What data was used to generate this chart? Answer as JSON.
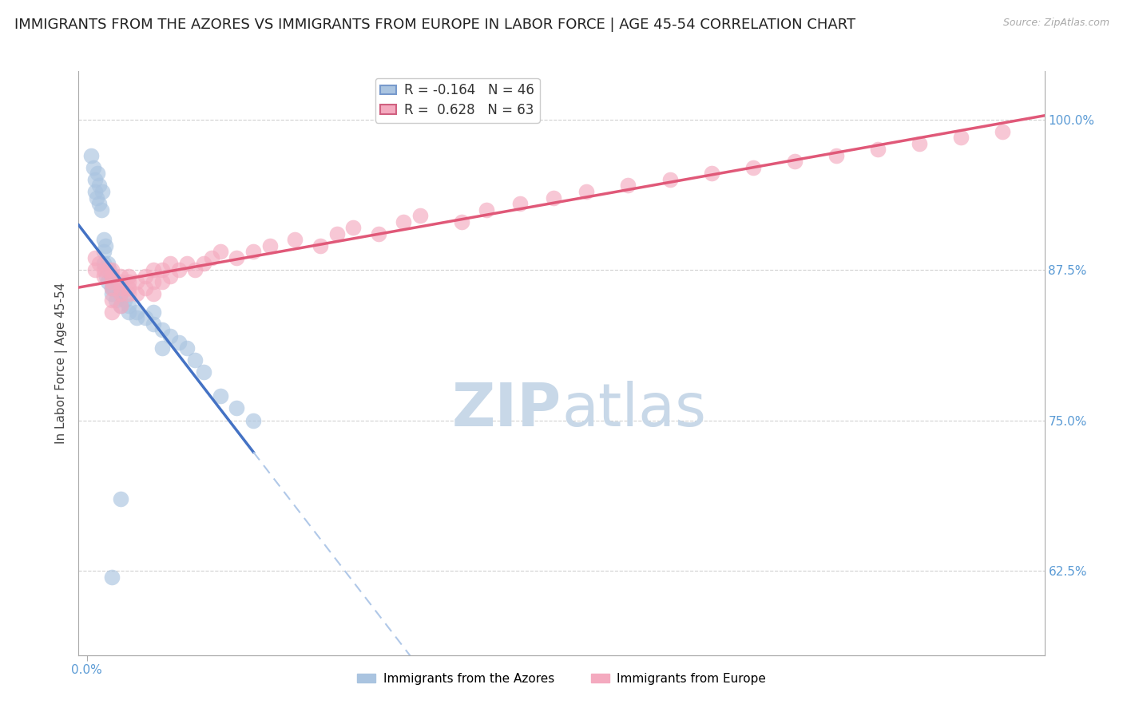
{
  "title": "IMMIGRANTS FROM THE AZORES VS IMMIGRANTS FROM EUROPE IN LABOR FORCE | AGE 45-54 CORRELATION CHART",
  "source": "Source: ZipAtlas.com",
  "ylabel": "In Labor Force | Age 45-54",
  "r_azores": -0.164,
  "n_azores": 46,
  "r_europe": 0.628,
  "n_europe": 63,
  "legend_azores": "Immigrants from the Azores",
  "legend_europe": "Immigrants from Europe",
  "color_azores": "#aac4e0",
  "color_europe": "#f4aabf",
  "line_color_azores": "#4472c4",
  "line_color_europe": "#e05878",
  "line_color_azores_dash": "#b0c8e8",
  "axis_color": "#5b9bd5",
  "ylim": [
    0.555,
    1.04
  ],
  "xlim": [
    -0.001,
    0.115
  ],
  "background_color": "#ffffff",
  "grid_color": "#d0d0d0",
  "title_fontsize": 13,
  "label_fontsize": 11,
  "tick_fontsize": 11,
  "watermark_zip": "ZIP",
  "watermark_atlas": "atlas",
  "watermark_color": "#c8d8e8",
  "azores_x": [
    0.0005,
    0.0008,
    0.001,
    0.001,
    0.0012,
    0.0013,
    0.0015,
    0.0015,
    0.0017,
    0.0018,
    0.002,
    0.002,
    0.002,
    0.0022,
    0.0023,
    0.0025,
    0.0025,
    0.0027,
    0.003,
    0.003,
    0.003,
    0.0032,
    0.0035,
    0.004,
    0.004,
    0.0042,
    0.0045,
    0.005,
    0.005,
    0.006,
    0.006,
    0.007,
    0.008,
    0.008,
    0.009,
    0.009,
    0.01,
    0.011,
    0.012,
    0.013,
    0.014,
    0.016,
    0.018,
    0.02,
    0.004,
    0.003
  ],
  "azores_y": [
    0.97,
    0.96,
    0.95,
    0.94,
    0.935,
    0.955,
    0.945,
    0.93,
    0.925,
    0.94,
    0.9,
    0.89,
    0.88,
    0.895,
    0.87,
    0.865,
    0.88,
    0.875,
    0.87,
    0.86,
    0.855,
    0.86,
    0.85,
    0.855,
    0.845,
    0.86,
    0.85,
    0.845,
    0.84,
    0.84,
    0.835,
    0.835,
    0.84,
    0.83,
    0.825,
    0.81,
    0.82,
    0.815,
    0.81,
    0.8,
    0.79,
    0.77,
    0.76,
    0.75,
    0.685,
    0.62
  ],
  "europe_x": [
    0.001,
    0.001,
    0.0015,
    0.002,
    0.002,
    0.0025,
    0.003,
    0.003,
    0.003,
    0.003,
    0.004,
    0.004,
    0.004,
    0.004,
    0.005,
    0.005,
    0.005,
    0.006,
    0.006,
    0.007,
    0.007,
    0.008,
    0.008,
    0.008,
    0.009,
    0.009,
    0.01,
    0.01,
    0.011,
    0.012,
    0.013,
    0.014,
    0.015,
    0.016,
    0.018,
    0.02,
    0.022,
    0.025,
    0.028,
    0.03,
    0.032,
    0.035,
    0.038,
    0.04,
    0.045,
    0.048,
    0.052,
    0.056,
    0.06,
    0.065,
    0.07,
    0.075,
    0.08,
    0.085,
    0.09,
    0.095,
    0.1,
    0.105,
    0.11,
    0.003,
    0.003,
    0.004,
    0.005
  ],
  "europe_y": [
    0.885,
    0.875,
    0.88,
    0.875,
    0.87,
    0.875,
    0.87,
    0.865,
    0.875,
    0.86,
    0.87,
    0.86,
    0.865,
    0.855,
    0.86,
    0.87,
    0.865,
    0.855,
    0.865,
    0.86,
    0.87,
    0.865,
    0.855,
    0.875,
    0.865,
    0.875,
    0.87,
    0.88,
    0.875,
    0.88,
    0.875,
    0.88,
    0.885,
    0.89,
    0.885,
    0.89,
    0.895,
    0.9,
    0.895,
    0.905,
    0.91,
    0.905,
    0.915,
    0.92,
    0.915,
    0.925,
    0.93,
    0.935,
    0.94,
    0.945,
    0.95,
    0.955,
    0.96,
    0.965,
    0.97,
    0.975,
    0.98,
    0.985,
    0.99,
    0.85,
    0.84,
    0.845,
    0.855
  ]
}
